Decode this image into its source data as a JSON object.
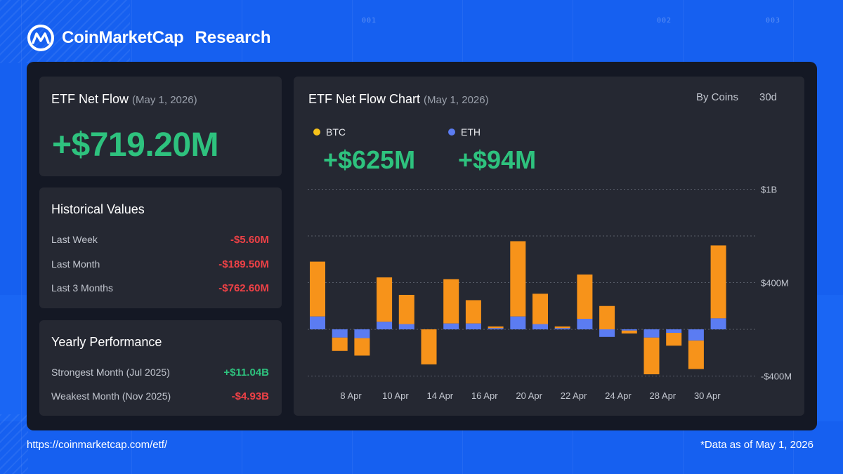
{
  "brand": {
    "name": "CoinMarketCap",
    "suffix": "Research"
  },
  "bg_numbers": [
    "001",
    "002",
    "003"
  ],
  "netflow": {
    "title": "ETF Net Flow",
    "date": "(May 1, 2026)",
    "value": "+$719.20M"
  },
  "historical": {
    "title": "Historical Values",
    "rows": [
      {
        "label": "Last Week",
        "value": "-$5.60M"
      },
      {
        "label": "Last Month",
        "value": "-$189.50M"
      },
      {
        "label": "Last 3 Months",
        "value": "-$762.60M"
      }
    ]
  },
  "yearly": {
    "title": "Yearly Performance",
    "rows": [
      {
        "label": "Strongest Month (Jul 2025)",
        "value": "+$11.04B"
      },
      {
        "label": "Weakest Month (Nov 2025)",
        "value": "-$4.93B"
      }
    ]
  },
  "chart_header": {
    "title": "ETF Net Flow Chart",
    "date": "(May 1, 2026)",
    "toggle_coins": "By Coins",
    "toggle_range": "30d",
    "legend": [
      {
        "name": "BTC",
        "value": "+$625M",
        "color": "#f7931a"
      },
      {
        "name": "ETH",
        "value": "+$94M",
        "color": "#5b7cf2"
      }
    ]
  },
  "colors": {
    "btc": "#f7931a",
    "eth": "#5b7cf2",
    "positive": "#2ec27e",
    "negative": "#ef4146"
  },
  "chart_data": {
    "type": "bar",
    "stacked": true,
    "x": [
      "Apr 7",
      "Apr 8",
      "Apr 9",
      "Apr 10",
      "Apr 11",
      "Apr 14",
      "Apr 15",
      "Apr 16",
      "Apr 17",
      "Apr 20",
      "Apr 21",
      "Apr 22",
      "Apr 23",
      "Apr 24",
      "Apr 25",
      "Apr 28",
      "Apr 29",
      "Apr 30",
      "May 1"
    ],
    "x_tick_labels": [
      "8 Apr",
      "10 Apr",
      "14 Apr",
      "16 Apr",
      "20 Apr",
      "22 Apr",
      "24 Apr",
      "28 Apr",
      "30 Apr"
    ],
    "series": [
      {
        "name": "BTC",
        "values": [
          470,
          -115,
          -150,
          380,
          250,
          -300,
          380,
          200,
          15,
          645,
          260,
          15,
          380,
          200,
          -25,
          -315,
          -110,
          -245,
          625
        ]
      },
      {
        "name": "ETH",
        "values": [
          110,
          -70,
          -75,
          65,
          45,
          0,
          50,
          50,
          10,
          110,
          45,
          10,
          90,
          -65,
          -10,
          -70,
          -30,
          -95,
          94
        ]
      }
    ],
    "y_tick_labels": [
      "$1B",
      "$400M",
      "-$400M"
    ],
    "ylim": [
      -400,
      1200
    ],
    "grid": "dotted horizontal"
  },
  "footer": {
    "url": "https://coinmarketcap.com/etf/",
    "note": "*Data as of May 1, 2026"
  }
}
